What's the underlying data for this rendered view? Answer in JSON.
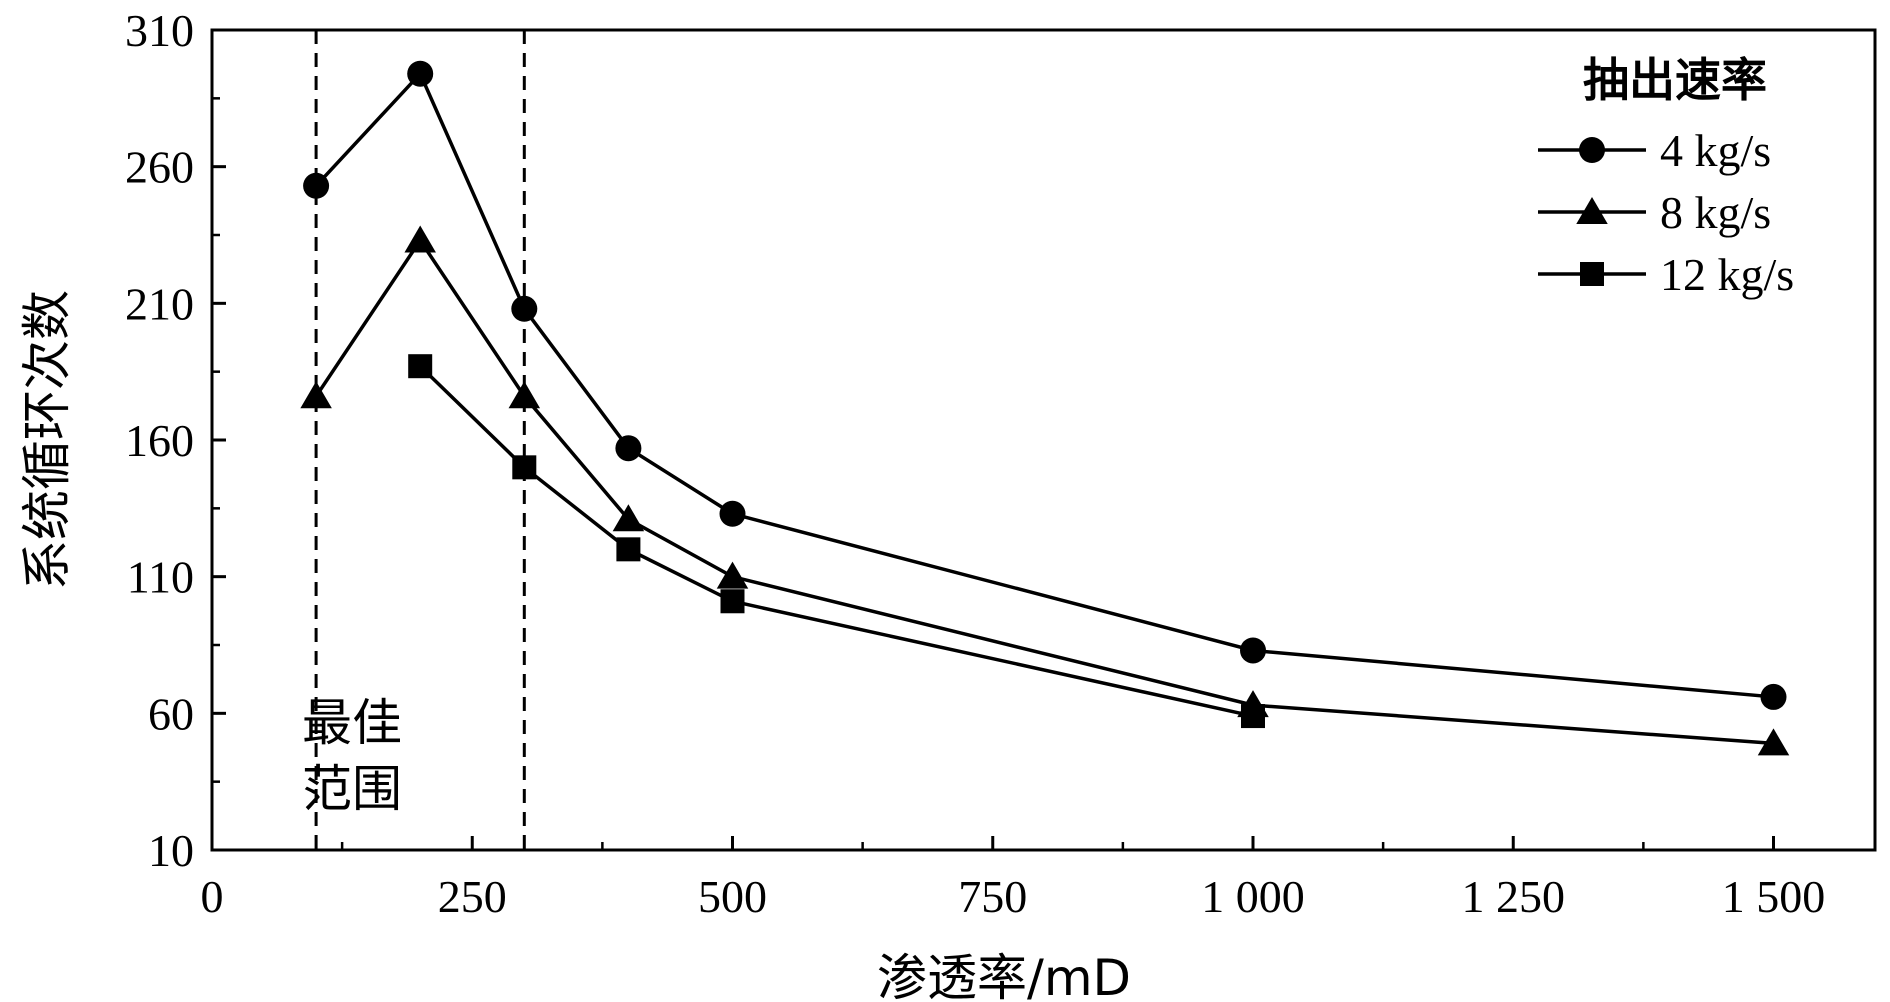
{
  "chart_data": {
    "type": "line",
    "xlabel": "渗透率/mD",
    "ylabel": "系统循环次数",
    "xlim": [
      0,
      1600
    ],
    "ylim": [
      10,
      310
    ],
    "xticks": [
      0,
      250,
      500,
      750,
      1000,
      1250,
      1500
    ],
    "xtick_labels": [
      "0",
      "250",
      "500",
      "750",
      "1 000",
      "1 250",
      "1 500"
    ],
    "yticks": [
      10,
      60,
      110,
      160,
      210,
      260,
      310
    ],
    "ytick_labels": [
      "10",
      "60",
      "110",
      "160",
      "210",
      "260",
      "310"
    ],
    "grid": false,
    "legend": {
      "title": "抽出速率",
      "position": "top-right"
    },
    "series": [
      {
        "name": "4 kg/s",
        "marker": "circle",
        "x": [
          100,
          200,
          300,
          400,
          500,
          1000,
          1500
        ],
        "y": [
          253,
          294,
          208,
          157,
          133,
          83,
          66
        ]
      },
      {
        "name": "8 kg/s",
        "marker": "triangle",
        "x": [
          100,
          200,
          300,
          400,
          500,
          1000,
          1500
        ],
        "y": [
          176,
          233,
          176,
          131,
          110,
          63,
          49
        ]
      },
      {
        "name": "12 kg/s",
        "marker": "square",
        "x": [
          200,
          300,
          400,
          500,
          1000
        ],
        "y": [
          187,
          150,
          120,
          101,
          59
        ]
      }
    ],
    "ref_lines_x": [
      100,
      300
    ],
    "annotation": {
      "lines": [
        "最佳",
        "范围"
      ]
    }
  }
}
